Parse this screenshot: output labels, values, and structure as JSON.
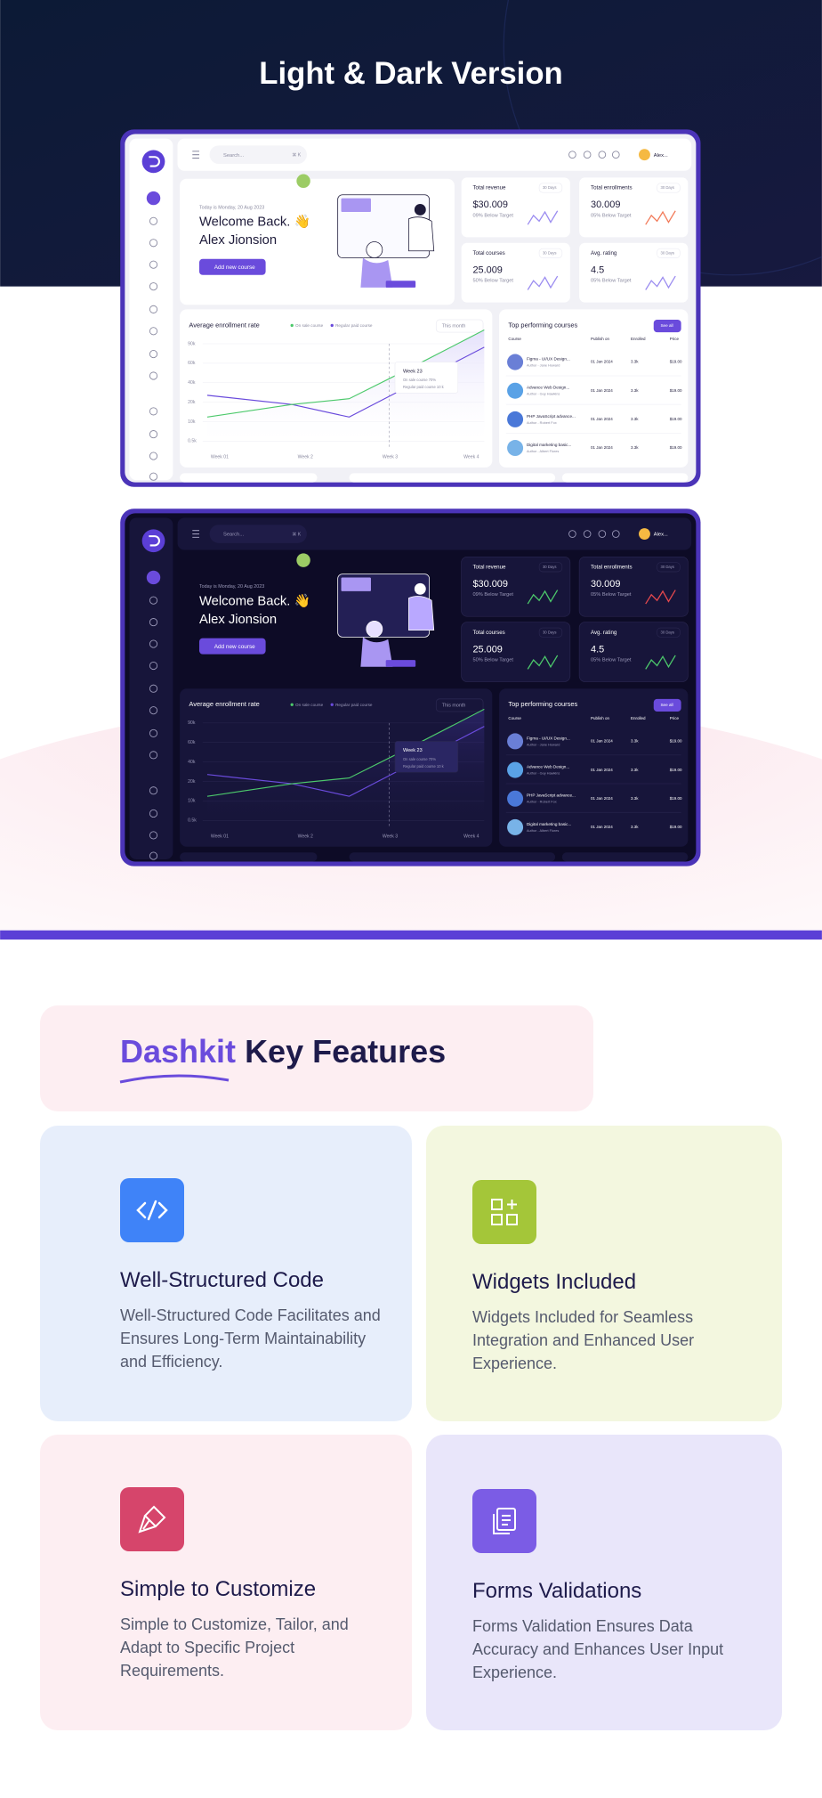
{
  "hero": {
    "title": "Light & Dark Version"
  },
  "dashboard": {
    "search": "Search...",
    "shortcut": "⌘ K",
    "user": "Alex...",
    "date": "Today is Monday, 20 Aug 2023",
    "welcome": "Welcome Back. 👋",
    "name": "Alex Jionsion",
    "button": "Add new course",
    "stats": [
      {
        "label": "Total revenue",
        "period": "30 Days",
        "value": "$30.009",
        "note": "09% Below Target"
      },
      {
        "label": "Total enrollments",
        "period": "30 Days",
        "value": "30.009",
        "note": "05% Below Target"
      },
      {
        "label": "Total courses",
        "period": "30 Days",
        "value": "25.009",
        "note": "50% Below Target"
      },
      {
        "label": "Avg. rating",
        "period": "30 Days",
        "value": "4.5",
        "note": "05% Below Target"
      }
    ],
    "chart": {
      "title": "Average enrollment rate",
      "legend": [
        "On sale course",
        "Regular paid course"
      ],
      "period": "This month",
      "yticks": [
        "90k",
        "60k",
        "40k",
        "20k",
        "10k",
        "0.5k"
      ],
      "xticks": [
        "Week 01",
        "Week 2",
        "Week 3",
        "Week 4"
      ],
      "tooltip": [
        "Week 23",
        "On sale course 70%",
        "Regular paid course 10 k"
      ]
    },
    "courses": {
      "title": "Top performing courses",
      "see_all": "See all",
      "columns": [
        "Course",
        "Publish on",
        "Enrolled",
        "Price"
      ],
      "rows": [
        [
          "Figma - UI/UX Design...",
          "Author - Jane Howard",
          "01 Jan 2024",
          "3.3k",
          "$19.00"
        ],
        [
          "Advance Web Design...",
          "Author - Guy Hawkins",
          "01 Jan 2024",
          "3.3k",
          "$19.00"
        ],
        [
          "PHP JavaScript advance...",
          "Author - Robert Fox",
          "01 Jan 2024",
          "3.3k",
          "$19.00"
        ],
        [
          "Digital marketing basic...",
          "Author - Albert Flores",
          "01 Jan 2024",
          "3.3k",
          "$19.00"
        ]
      ]
    }
  },
  "features": {
    "heading_highlight": "Dashkit",
    "heading_rest": "Key Features",
    "items": [
      {
        "title": "Well-Structured Code",
        "description": "Well-Structured Code Facilitates and Ensures Long-Term Maintainability and Efficiency."
      },
      {
        "title": "Widgets Included",
        "description": "Widgets Included for Seamless Integration and Enhanced User Experience."
      },
      {
        "title": "Simple to Customize",
        "description": "Simple to Customize, Tailor, and Adapt to Specific Project Requirements."
      },
      {
        "title": "Forms Validations",
        "description": "Forms Validation Ensures Data Accuracy and Enhances User Input Experience."
      }
    ]
  }
}
